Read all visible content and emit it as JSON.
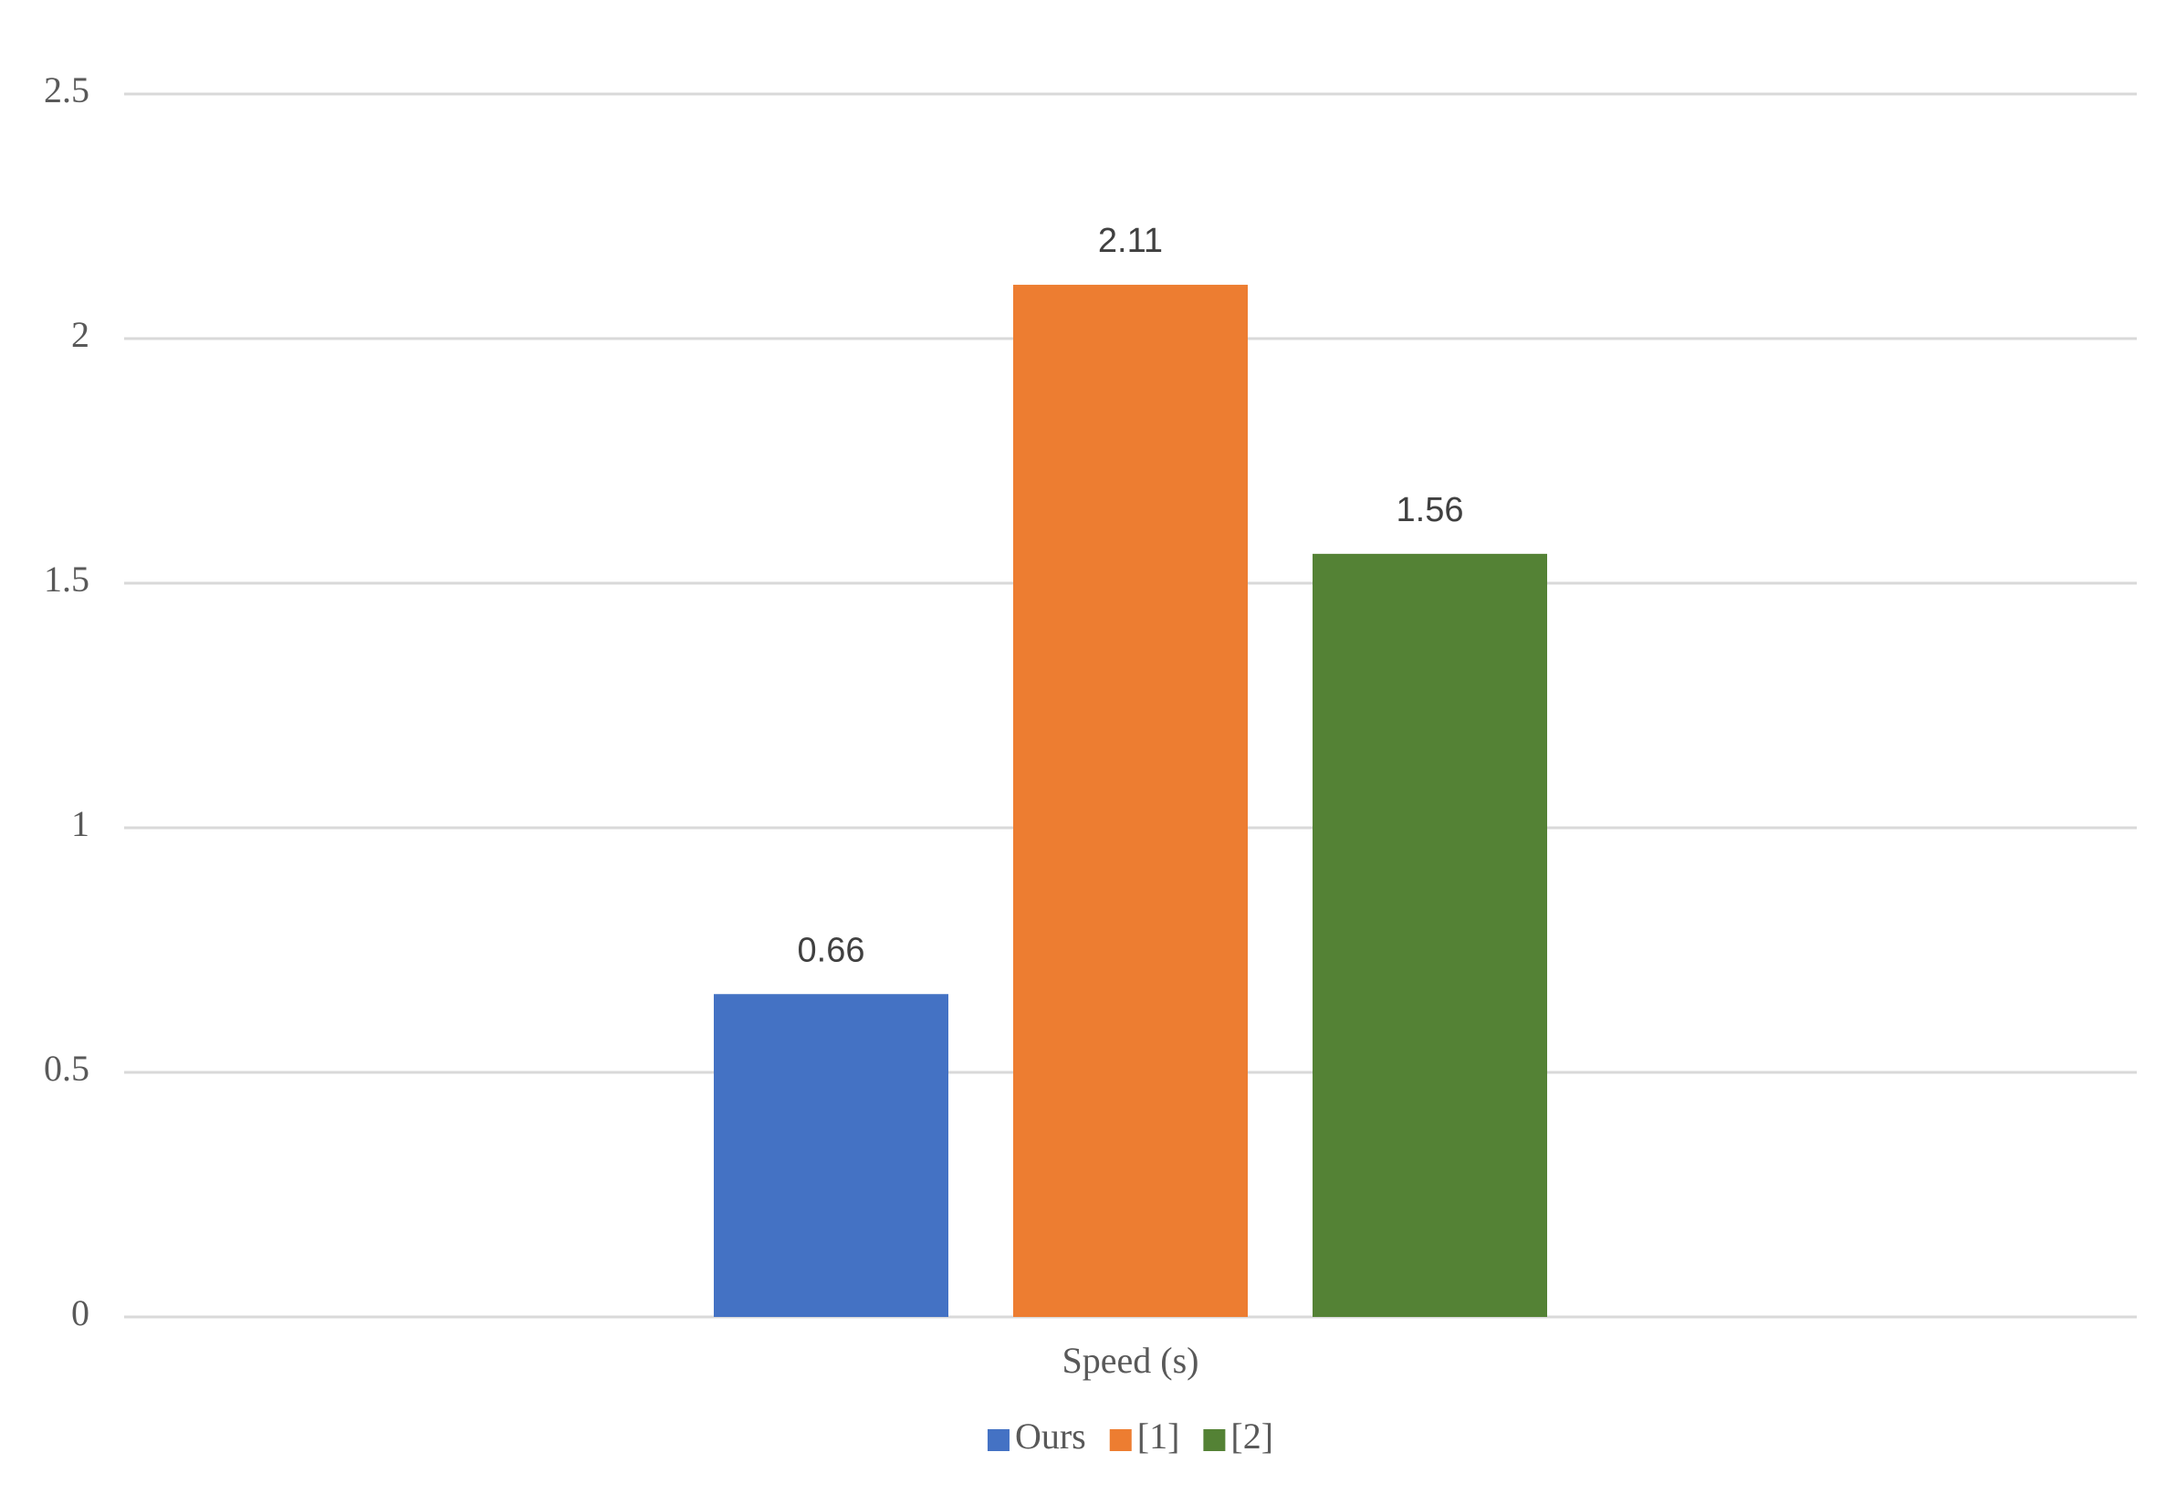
{
  "chart_data": {
    "type": "bar",
    "categories": [
      "Speed (s)"
    ],
    "series": [
      {
        "name": "Ours",
        "color": "#4472c4",
        "values": [
          0.66
        ]
      },
      {
        "name": "[1]",
        "color": "#ed7d31",
        "values": [
          2.11
        ]
      },
      {
        "name": "[2]",
        "color": "#548235",
        "values": [
          1.56
        ]
      }
    ],
    "ylim": [
      0,
      2.5
    ],
    "yticks": [
      0,
      0.5,
      1,
      1.5,
      2,
      2.5
    ],
    "grid": true,
    "legend": "bottom"
  }
}
